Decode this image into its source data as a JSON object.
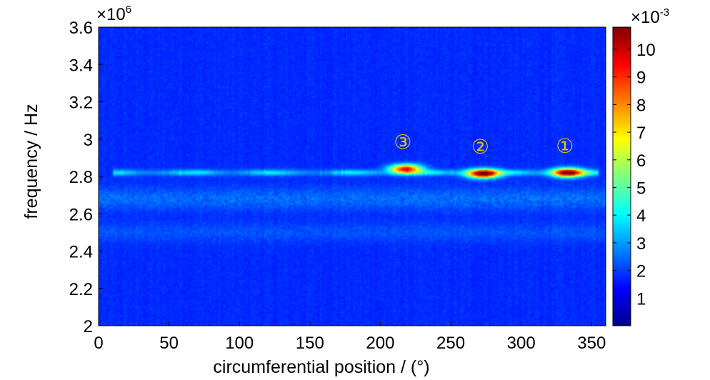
{
  "chart_data": {
    "type": "heatmap",
    "title": "",
    "xlabel": "circumferential position / (°)",
    "ylabel": "frequency / Hz",
    "xlim": [
      0,
      360
    ],
    "ylim": [
      2000000,
      3600000
    ],
    "x_ticks": [
      "0",
      "50",
      "100",
      "150",
      "200",
      "250",
      "300",
      "350"
    ],
    "y_ticks": [
      "2",
      "2.2",
      "2.4",
      "2.6",
      "2.8",
      "3",
      "3.2",
      "3.4",
      "3.6"
    ],
    "y_multiplier": {
      "base": "×10",
      "exp": "6"
    },
    "colorbar": {
      "range": [
        0,
        0.0108
      ],
      "ticks": [
        "1",
        "2",
        "3",
        "4",
        "5",
        "6",
        "7",
        "8",
        "9",
        "10"
      ],
      "multiplier": {
        "base": "×10",
        "exp": "-3"
      },
      "colormap": "jet"
    },
    "annotation_color": "#e6c200",
    "band": {
      "frequency": 2820000,
      "intensity_range": [
        0.001,
        0.0025
      ],
      "x_range": [
        10,
        355
      ]
    },
    "hotspots": [
      {
        "label": "①",
        "x": 333,
        "y": 2820000,
        "peak": 0.0098
      },
      {
        "label": "②",
        "x": 273,
        "y": 2815000,
        "peak": 0.0105
      },
      {
        "label": "③",
        "x": 218,
        "y": 2840000,
        "peak": 0.0088
      }
    ],
    "background_level": 0.0005
  }
}
